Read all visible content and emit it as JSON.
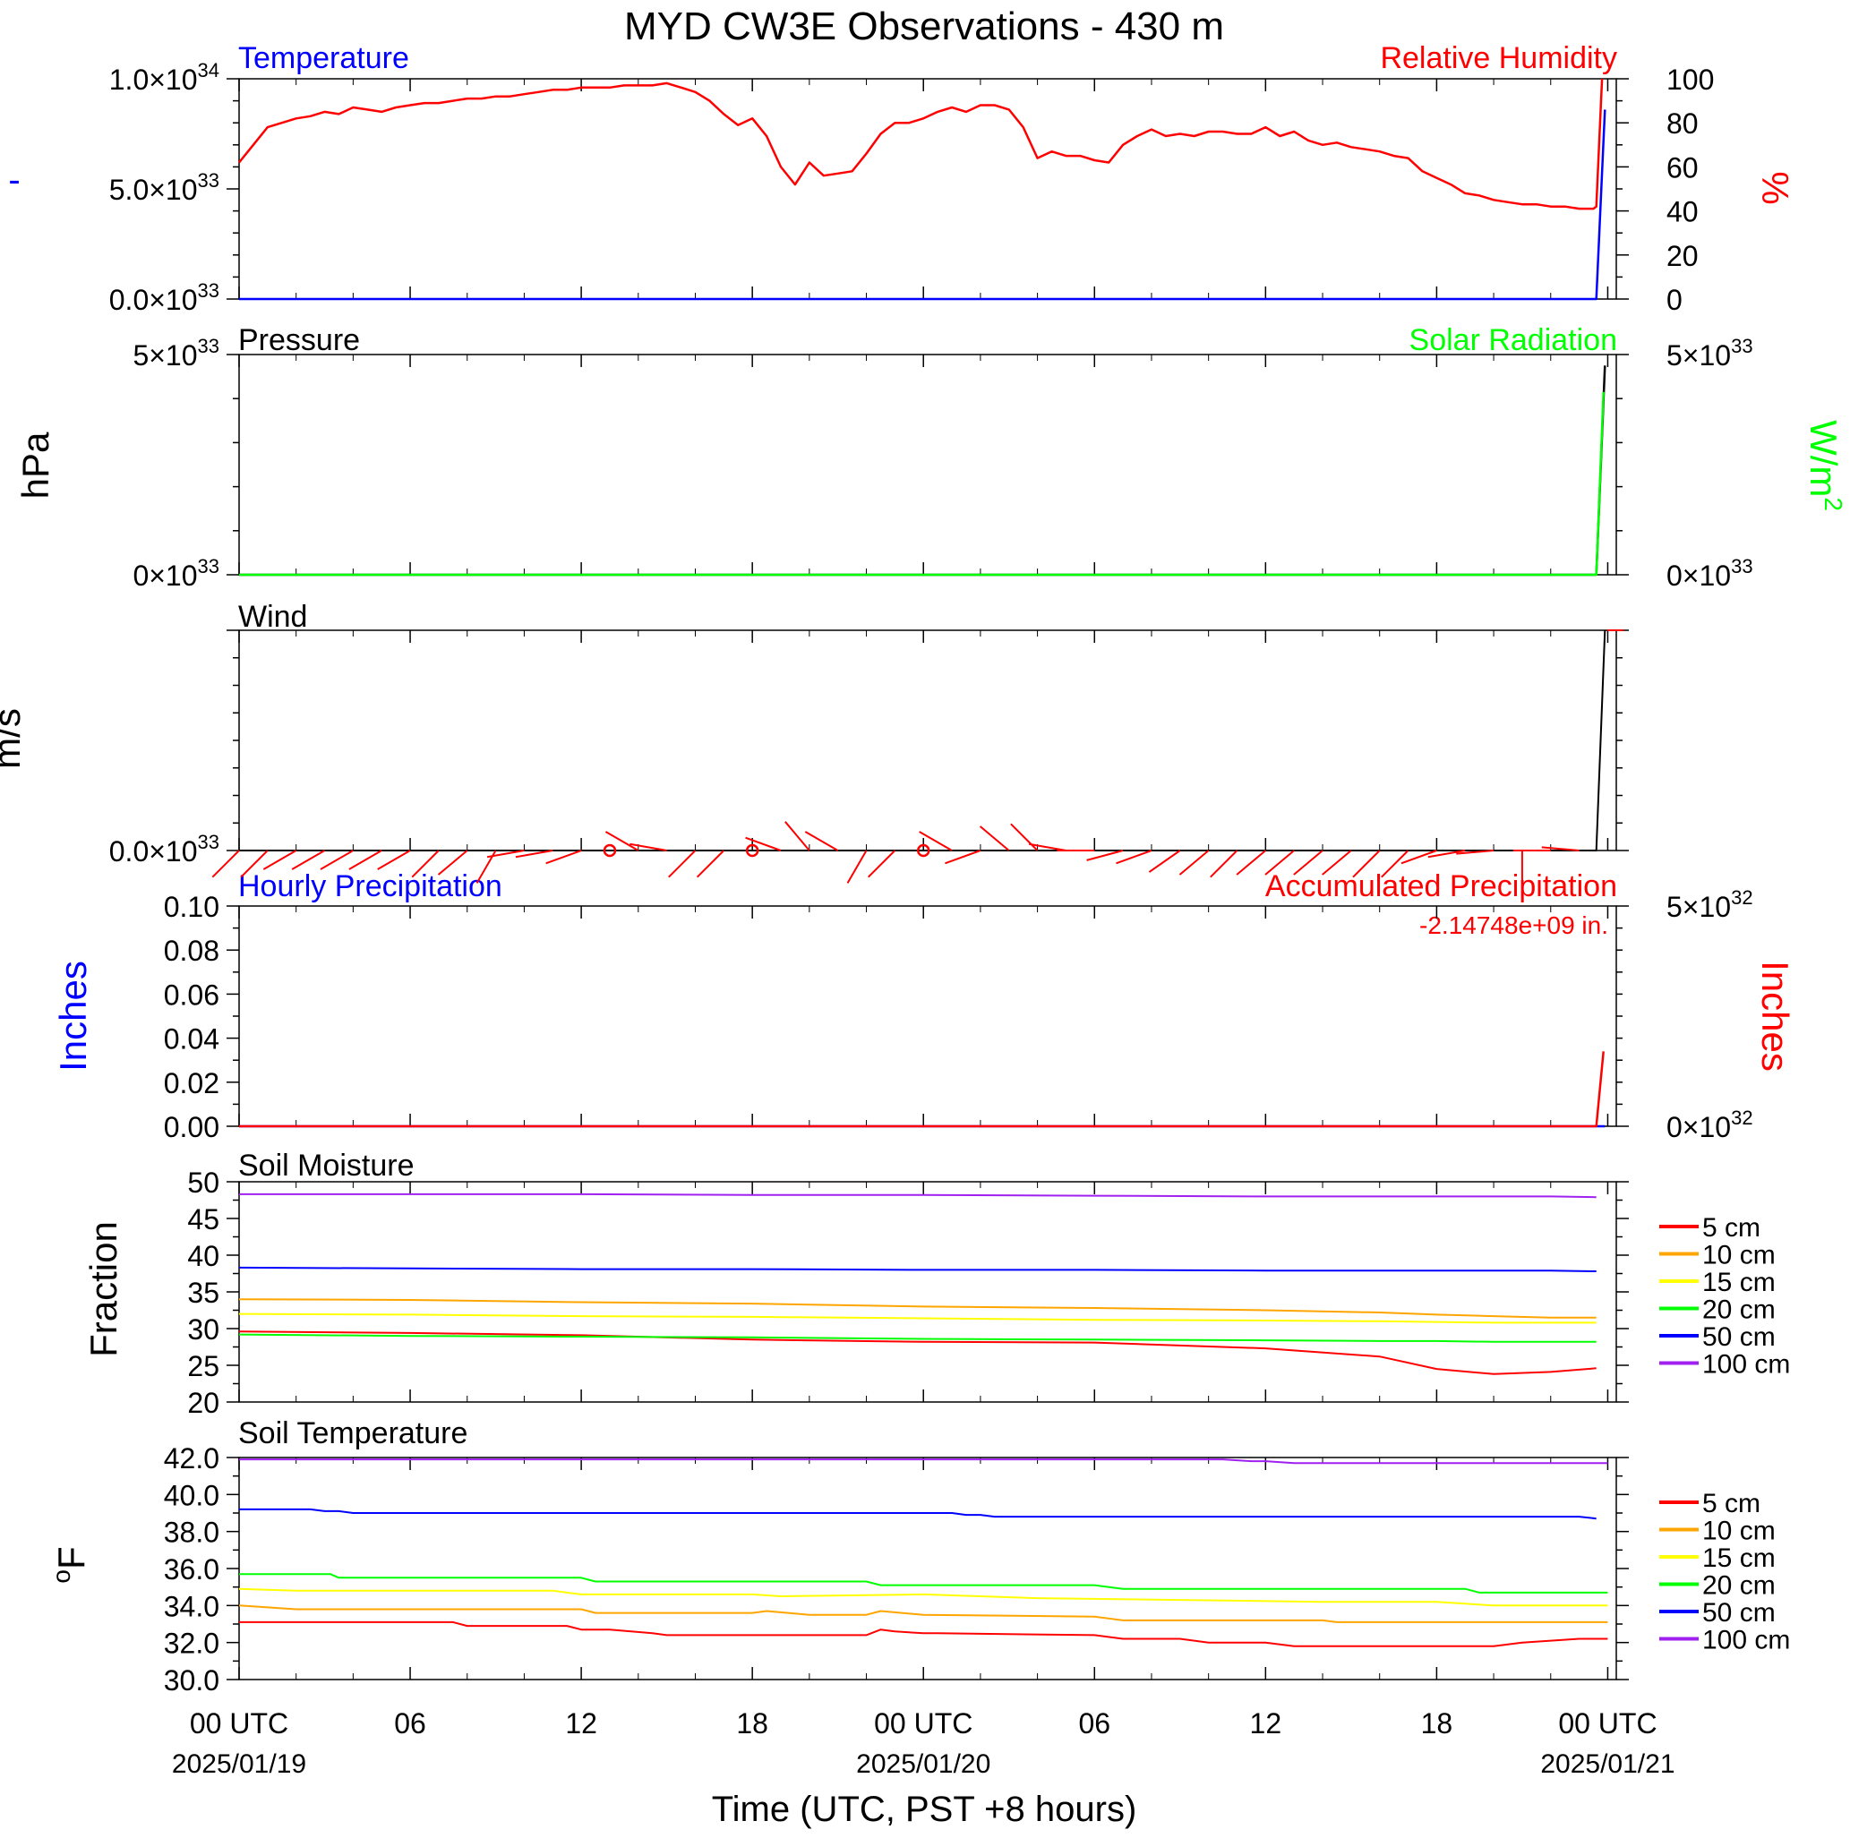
{
  "title": "MYD CW3E Observations - 430 m",
  "xlabel": "Time (UTC, PST +8 hours)",
  "x_ticks": [
    {
      "hour": 0,
      "label": "00 UTC",
      "date": "2025/01/19"
    },
    {
      "hour": 6,
      "label": "06",
      "date": ""
    },
    {
      "hour": 12,
      "label": "12",
      "date": ""
    },
    {
      "hour": 18,
      "label": "18",
      "date": ""
    },
    {
      "hour": 24,
      "label": "00 UTC",
      "date": "2025/01/20"
    },
    {
      "hour": 30,
      "label": "06",
      "date": ""
    },
    {
      "hour": 36,
      "label": "12",
      "date": ""
    },
    {
      "hour": 42,
      "label": "18",
      "date": ""
    },
    {
      "hour": 48,
      "label": "00 UTC",
      "date": "2025/01/21"
    }
  ],
  "colors": {
    "temperature": "#0000ff",
    "humidity": "#ff0000",
    "pressure": "#000000",
    "solar": "#00ff00",
    "wind": "#ff0000",
    "hourly_precip": "#0000ff",
    "accum_precip": "#ff0000",
    "depth_5cm": "#ff0000",
    "depth_10cm": "#ffa500",
    "depth_15cm": "#ffff00",
    "depth_20cm": "#00ff00",
    "depth_50cm": "#0000ff",
    "depth_100cm": "#a020f0"
  },
  "panels": {
    "temp_rh": {
      "left_title": "Temperature",
      "right_title": "Relative Humidity",
      "left_unit": "-",
      "right_unit": "%",
      "left_ticks": [
        {
          "v": 0,
          "m": "0.0",
          "e": "33"
        },
        {
          "v": 0.5,
          "m": "5.0",
          "e": "33"
        },
        {
          "v": 1,
          "m": "1.0",
          "e": "34"
        }
      ],
      "right_ticks": [
        "0",
        "20",
        "40",
        "60",
        "80",
        "100"
      ]
    },
    "pressure": {
      "left_title": "Pressure",
      "right_title": "Solar Radiation",
      "left_unit": "hPa",
      "right_unit_base": "W/m",
      "right_unit_sup": "2",
      "left_ticks": [
        {
          "v": 0,
          "m": "0",
          "e": "33"
        },
        {
          "v": 1,
          "m": "5",
          "e": "33"
        }
      ],
      "right_ticks": [
        {
          "v": 0,
          "m": "0",
          "e": "33"
        },
        {
          "v": 1,
          "m": "5",
          "e": "33"
        }
      ]
    },
    "wind": {
      "title": "Wind",
      "unit": "m/s",
      "ticks": [
        {
          "v": 0,
          "m": "0.0",
          "e": "33"
        }
      ]
    },
    "precip": {
      "left_title": "Hourly Precipitation",
      "right_title": "Accumulated Precipitation",
      "total": "-2.14748e+09 in.",
      "left_unit": "Inches",
      "right_unit": "Inches",
      "left_ticks": [
        "0.00",
        "0.02",
        "0.04",
        "0.06",
        "0.08",
        "0.10"
      ],
      "right_ticks": [
        {
          "v": 0,
          "m": "0",
          "e": "32"
        },
        {
          "v": 1,
          "m": "5",
          "e": "32"
        }
      ]
    },
    "soil_moisture": {
      "title": "Soil Moisture",
      "unit": "Fraction",
      "ticks": [
        "20",
        "25",
        "30",
        "35",
        "40",
        "45",
        "50"
      ],
      "legend": [
        "5 cm",
        "10 cm",
        "15 cm",
        "20 cm",
        "50 cm",
        "100 cm"
      ]
    },
    "soil_temp": {
      "title": "Soil Temperature",
      "unit_deg": "o",
      "unit_letter": "F",
      "ticks": [
        "30.0",
        "32.0",
        "34.0",
        "36.0",
        "38.0",
        "40.0",
        "42.0"
      ],
      "legend": [
        "5 cm",
        "10 cm",
        "15 cm",
        "20 cm",
        "50 cm",
        "100 cm"
      ]
    }
  },
  "chart_data": [
    {
      "type": "line",
      "title": "Temperature / Relative Humidity",
      "x_units": "hours since 2025/01/19 00 UTC",
      "series": [
        {
          "name": "Temperature",
          "axis": "left",
          "x": [
            0,
            47.6,
            47.9
          ],
          "values": [
            0,
            0,
            8.6e+33
          ]
        },
        {
          "name": "Relative Humidity",
          "axis": "right",
          "ylim": [
            0,
            100
          ],
          "x": [
            0,
            0.5,
            1,
            1.5,
            2,
            2.5,
            3,
            3.5,
            4,
            4.5,
            5,
            5.5,
            6,
            6.5,
            7,
            7.5,
            8,
            8.5,
            9,
            9.5,
            10,
            10.5,
            11,
            11.5,
            12,
            12.5,
            13,
            13.5,
            14,
            14.5,
            15,
            15.5,
            16,
            16.5,
            17,
            17.5,
            18,
            18.5,
            19,
            19.5,
            20,
            20.5,
            21,
            21.5,
            22,
            22.5,
            23,
            23.5,
            24,
            24.5,
            25,
            25.5,
            26,
            26.5,
            27,
            27.5,
            28,
            28.5,
            29,
            29.5,
            30,
            30.5,
            31,
            31.5,
            32,
            32.5,
            33,
            33.5,
            34,
            34.5,
            35,
            35.5,
            36,
            36.5,
            37,
            37.5,
            38,
            38.5,
            39,
            39.5,
            40,
            40.5,
            41,
            41.5,
            42,
            42.5,
            43,
            43.5,
            44,
            44.5,
            45,
            45.5,
            46,
            46.5,
            47,
            47.5,
            47.6,
            47.8
          ],
          "values": [
            62,
            70,
            78,
            80,
            82,
            83,
            85,
            84,
            87,
            86,
            85,
            87,
            88,
            89,
            89,
            90,
            91,
            91,
            92,
            92,
            93,
            94,
            95,
            95,
            96,
            96,
            96,
            97,
            97,
            97,
            98,
            96,
            94,
            90,
            84,
            79,
            82,
            74,
            60,
            52,
            62,
            56,
            57,
            58,
            66,
            75,
            80,
            80,
            82,
            85,
            87,
            85,
            88,
            88,
            86,
            78,
            64,
            67,
            65,
            65,
            63,
            62,
            70,
            74,
            77,
            74,
            75,
            74,
            76,
            76,
            75,
            75,
            78,
            74,
            76,
            72,
            70,
            71,
            69,
            68,
            67,
            65,
            64,
            58,
            55,
            52,
            48,
            47,
            45,
            44,
            43,
            43,
            42,
            42,
            41,
            41,
            42,
            100
          ]
        }
      ]
    },
    {
      "type": "line",
      "title": "Pressure / Solar Radiation",
      "x_units": "hours since 2025/01/19 00 UTC",
      "series": [
        {
          "name": "Pressure",
          "axis": "left",
          "x": [
            0,
            47.6,
            47.9
          ],
          "values": [
            0,
            0,
            4.75e+33
          ]
        },
        {
          "name": "Solar Radiation",
          "axis": "right",
          "x": [
            0,
            47.6,
            47.85
          ],
          "values": [
            0,
            0,
            4.15e+33
          ]
        }
      ]
    },
    {
      "type": "line",
      "title": "Wind",
      "x_units": "hours since 2025/01/19 00 UTC",
      "series": [
        {
          "name": "Wind speed",
          "x": [
            0,
            47.6,
            47.9
          ],
          "values": [
            0,
            0,
            1e+34
          ]
        }
      ],
      "barbs": {
        "x": [
          0,
          1,
          2,
          3,
          4,
          5,
          6,
          7,
          8,
          9,
          10,
          11,
          12,
          13,
          14,
          15,
          16,
          17,
          18,
          19,
          20,
          21,
          22,
          23,
          24,
          25,
          26,
          27,
          28,
          29,
          30,
          31,
          32,
          33,
          34,
          35,
          36,
          37,
          38,
          39,
          40,
          41,
          42,
          43,
          44,
          45,
          46,
          47
        ],
        "direction_deg": [
          225,
          225,
          240,
          240,
          240,
          240,
          240,
          225,
          230,
          210,
          260,
          260,
          250,
          0,
          300,
          280,
          225,
          225,
          0,
          290,
          320,
          300,
          210,
          225,
          0,
          300,
          250,
          310,
          315,
          280,
          270,
          255,
          250,
          235,
          230,
          225,
          230,
          230,
          230,
          230,
          225,
          225,
          250,
          260,
          265,
          180,
          270,
          275
        ],
        "speed": [
          1,
          1,
          1,
          1,
          1,
          1,
          1,
          1,
          1,
          1,
          1,
          1,
          1,
          0,
          1,
          1,
          1,
          1,
          0,
          1,
          1,
          1,
          1,
          1,
          0,
          1,
          1,
          1,
          1,
          1,
          1,
          1,
          1,
          1,
          1,
          1,
          1,
          1,
          1,
          1,
          1,
          1,
          1,
          1,
          1,
          1,
          1,
          1
        ]
      }
    },
    {
      "type": "line",
      "title": "Hourly / Accumulated Precipitation",
      "x_units": "hours since 2025/01/19 00 UTC",
      "series": [
        {
          "name": "Hourly Precipitation",
          "axis": "left",
          "ylim": [
            0,
            0.1
          ],
          "x": [
            0,
            47.9
          ],
          "values": [
            0,
            0
          ]
        },
        {
          "name": "Accumulated Precipitation",
          "axis": "right",
          "x": [
            0,
            47.6,
            47.85
          ],
          "values": [
            0,
            0,
            1.7e+32
          ]
        }
      ]
    },
    {
      "type": "line",
      "title": "Soil Moisture",
      "ylim": [
        20,
        50
      ],
      "x_units": "hours since 2025/01/19 00 UTC",
      "x": [
        0,
        6,
        12,
        18,
        24,
        30,
        36,
        40,
        42,
        44,
        46,
        47.6
      ],
      "series": [
        {
          "name": "5 cm",
          "values": [
            29.6,
            29.4,
            29.1,
            28.5,
            28.2,
            28.1,
            27.3,
            26.2,
            24.5,
            23.8,
            24.1,
            24.6
          ]
        },
        {
          "name": "10 cm",
          "values": [
            34.0,
            33.9,
            33.6,
            33.4,
            33.0,
            32.8,
            32.5,
            32.2,
            31.9,
            31.7,
            31.5,
            31.5
          ]
        },
        {
          "name": "15 cm",
          "values": [
            32.0,
            31.9,
            31.7,
            31.6,
            31.4,
            31.2,
            31.1,
            31.0,
            30.9,
            30.8,
            30.8,
            30.8
          ]
        },
        {
          "name": "20 cm",
          "values": [
            29.2,
            29.0,
            28.9,
            28.8,
            28.6,
            28.5,
            28.4,
            28.3,
            28.3,
            28.2,
            28.2,
            28.2
          ]
        },
        {
          "name": "50 cm",
          "values": [
            38.3,
            38.2,
            38.1,
            38.1,
            38.0,
            38.0,
            37.9,
            37.9,
            37.9,
            37.9,
            37.9,
            37.8
          ]
        },
        {
          "name": "100 cm",
          "values": [
            48.3,
            48.3,
            48.3,
            48.2,
            48.2,
            48.1,
            48.0,
            48.0,
            48.0,
            48.0,
            48.0,
            47.9
          ]
        }
      ]
    },
    {
      "type": "line",
      "title": "Soil Temperature",
      "ylim": [
        30,
        42
      ],
      "x_units": "hours since 2025/01/19 00 UTC",
      "series": [
        {
          "name": "5 cm",
          "x": [
            0,
            7.5,
            8,
            11.5,
            12,
            13,
            14.5,
            15,
            22,
            22.5,
            23,
            24,
            24.5,
            30,
            31,
            33,
            34,
            36,
            37,
            44,
            45,
            47,
            48
          ],
          "values": [
            33.1,
            33.1,
            32.9,
            32.9,
            32.7,
            32.7,
            32.5,
            32.4,
            32.4,
            32.7,
            32.6,
            32.5,
            32.5,
            32.4,
            32.2,
            32.2,
            32.0,
            32.0,
            31.8,
            31.8,
            32.0,
            32.2,
            32.2
          ]
        },
        {
          "name": "10 cm",
          "x": [
            0,
            2,
            12,
            12.5,
            18,
            18.5,
            20,
            22,
            22.5,
            24,
            30,
            31,
            38,
            38.5,
            48
          ],
          "values": [
            34.0,
            33.8,
            33.8,
            33.6,
            33.6,
            33.7,
            33.5,
            33.5,
            33.7,
            33.5,
            33.4,
            33.2,
            33.2,
            33.1,
            33.1
          ]
        },
        {
          "name": "15 cm",
          "x": [
            0,
            2,
            11,
            12,
            18,
            19,
            24,
            28,
            33,
            38,
            42,
            44,
            48
          ],
          "values": [
            34.9,
            34.8,
            34.8,
            34.6,
            34.6,
            34.5,
            34.6,
            34.4,
            34.3,
            34.2,
            34.2,
            34.0,
            34.0
          ]
        },
        {
          "name": "20 cm",
          "x": [
            0,
            3.2,
            3.5,
            12,
            12.5,
            22,
            22.5,
            30,
            31,
            38,
            38.5,
            43,
            43.5,
            48
          ],
          "values": [
            35.7,
            35.7,
            35.5,
            35.5,
            35.3,
            35.3,
            35.1,
            35.1,
            34.9,
            34.9,
            34.9,
            34.9,
            34.7,
            34.7
          ]
        },
        {
          "name": "50 cm",
          "x": [
            0,
            2.5,
            3,
            3.5,
            4,
            25,
            25.5,
            26,
            26.5,
            30,
            47,
            47.6
          ],
          "values": [
            39.2,
            39.2,
            39.1,
            39.1,
            39.0,
            39.0,
            38.9,
            38.9,
            38.8,
            38.8,
            38.8,
            38.7
          ]
        },
        {
          "name": "100 cm",
          "x": [
            0,
            34.5,
            35.5,
            36,
            37,
            48
          ],
          "values": [
            41.9,
            41.9,
            41.8,
            41.8,
            41.7,
            41.7
          ]
        }
      ]
    }
  ]
}
